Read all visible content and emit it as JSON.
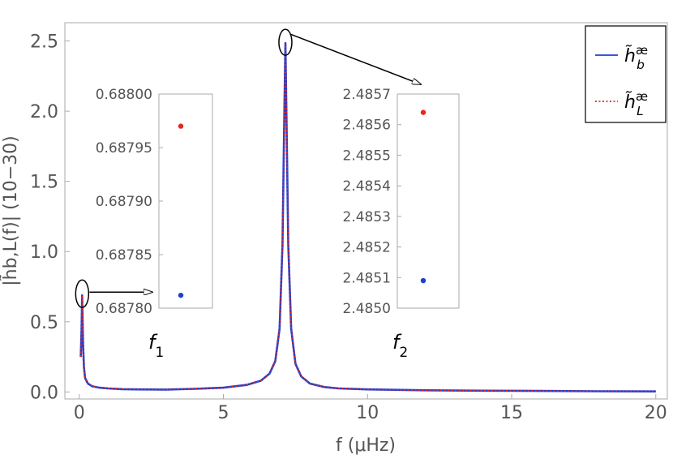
{
  "chart_data": {
    "type": "line",
    "xlabel": "f (μHz)",
    "ylabel": "|h̃b,L(f)| (10−30)",
    "xlim": [
      -0.5,
      20.4
    ],
    "ylim": [
      -0.05,
      2.63
    ],
    "x_ticks": [
      0,
      5,
      10,
      15,
      20
    ],
    "y_ticks": [
      0.0,
      0.5,
      1.0,
      1.5,
      2.0,
      2.5
    ],
    "x_tick_labels": [
      "0",
      "5",
      "10",
      "15",
      "20"
    ],
    "y_tick_labels": [
      "0.0",
      "0.5",
      "1.0",
      "1.5",
      "2.0",
      "2.5"
    ],
    "grid": false,
    "legend_position": "top-right",
    "series": [
      {
        "name": "h̃bæ",
        "legend_base": "h̃",
        "legend_sub": "b",
        "legend_sup": "æ",
        "color": "#1f3fd0",
        "style": "solid"
      },
      {
        "name": "h̃Læ",
        "legend_base": "h̃",
        "legend_sub": "L",
        "legend_sup": "æ",
        "color": "#e8271f",
        "style": "dotted"
      }
    ],
    "peaks": [
      {
        "name": "f1",
        "x": 0.1,
        "y": 0.688
      },
      {
        "name": "f2",
        "x": 7.15,
        "y": 2.485
      }
    ],
    "curve": {
      "x": [
        0.05,
        0.08,
        0.1,
        0.13,
        0.16,
        0.2,
        0.3,
        0.45,
        0.7,
        1.0,
        1.5,
        2.0,
        3.0,
        4.0,
        5.0,
        5.8,
        6.3,
        6.6,
        6.8,
        6.95,
        7.05,
        7.1,
        7.15,
        7.2,
        7.25,
        7.35,
        7.5,
        7.7,
        8.0,
        8.5,
        9.0,
        10.0,
        12.0,
        14.0,
        16.0,
        18.0,
        20.0
      ],
      "y": [
        0.25,
        0.45,
        0.688,
        0.35,
        0.18,
        0.1,
        0.06,
        0.04,
        0.03,
        0.025,
        0.02,
        0.018,
        0.017,
        0.022,
        0.03,
        0.05,
        0.08,
        0.13,
        0.22,
        0.45,
        1.05,
        1.8,
        2.485,
        1.8,
        1.05,
        0.45,
        0.2,
        0.11,
        0.06,
        0.035,
        0.025,
        0.018,
        0.012,
        0.009,
        0.007,
        0.005,
        0.004
      ]
    },
    "insets": [
      {
        "label_base": "f",
        "label_sub": "1",
        "ylim": [
          0.6878,
          0.688
        ],
        "y_ticks": [
          0.6878,
          0.68785,
          0.6879,
          0.68795,
          0.688
        ],
        "y_tick_labels": [
          "0.68780",
          "0.68785",
          "0.68790",
          "0.68795",
          "0.68800"
        ],
        "points": [
          {
            "series": "h̃Læ",
            "value": 0.68797,
            "color": "#e8271f"
          },
          {
            "series": "h̃bæ",
            "value": 0.687812,
            "color": "#1f3fd0"
          }
        ]
      },
      {
        "label_base": "f",
        "label_sub": "2",
        "ylim": [
          2.485,
          2.4857
        ],
        "y_ticks": [
          2.485,
          2.4851,
          2.4852,
          2.4853,
          2.4854,
          2.4855,
          2.4856,
          2.4857
        ],
        "y_tick_labels": [
          "2.4850",
          "2.4851",
          "2.4852",
          "2.4853",
          "2.4854",
          "2.4855",
          "2.4856",
          "2.4857"
        ],
        "points": [
          {
            "series": "h̃Læ",
            "value": 2.48564,
            "color": "#e8271f"
          },
          {
            "series": "h̃bæ",
            "value": 2.48509,
            "color": "#1f3fd0"
          }
        ]
      }
    ]
  }
}
